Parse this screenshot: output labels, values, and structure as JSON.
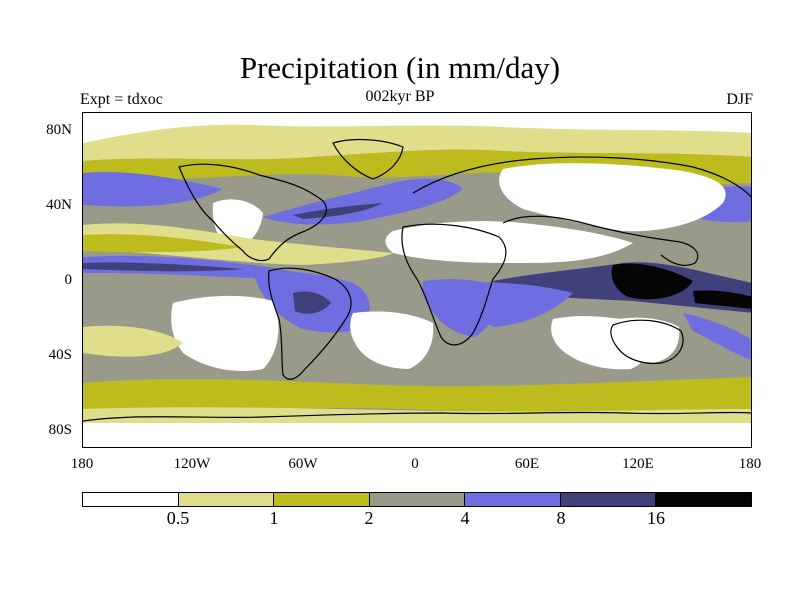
{
  "header": {
    "title": "Precipitation (in mm/day)",
    "left_label": "Expt = tdxoc",
    "center_label": "002kyr BP",
    "right_label": "DJF"
  },
  "map": {
    "y_ticks": [
      "80N",
      "40N",
      "0",
      "40S",
      "80S"
    ],
    "x_ticks": [
      "180",
      "120W",
      "60W",
      "0",
      "60E",
      "120E",
      "180"
    ],
    "palette": {
      "white": "#ffffff",
      "lightyellow": "#e0de8a",
      "olive": "#bdbc1e",
      "gray": "#9a9a8a",
      "blue": "#6e6ee0",
      "navy": "#40407a",
      "black": "#050505"
    }
  },
  "colorbar": {
    "colors": [
      "#ffffff",
      "#e0de8a",
      "#bdbc1e",
      "#9a9a8a",
      "#6e6ee0",
      "#40407a",
      "#050505"
    ],
    "labels": [
      "0.5",
      "1",
      "2",
      "4",
      "8",
      "16"
    ]
  }
}
